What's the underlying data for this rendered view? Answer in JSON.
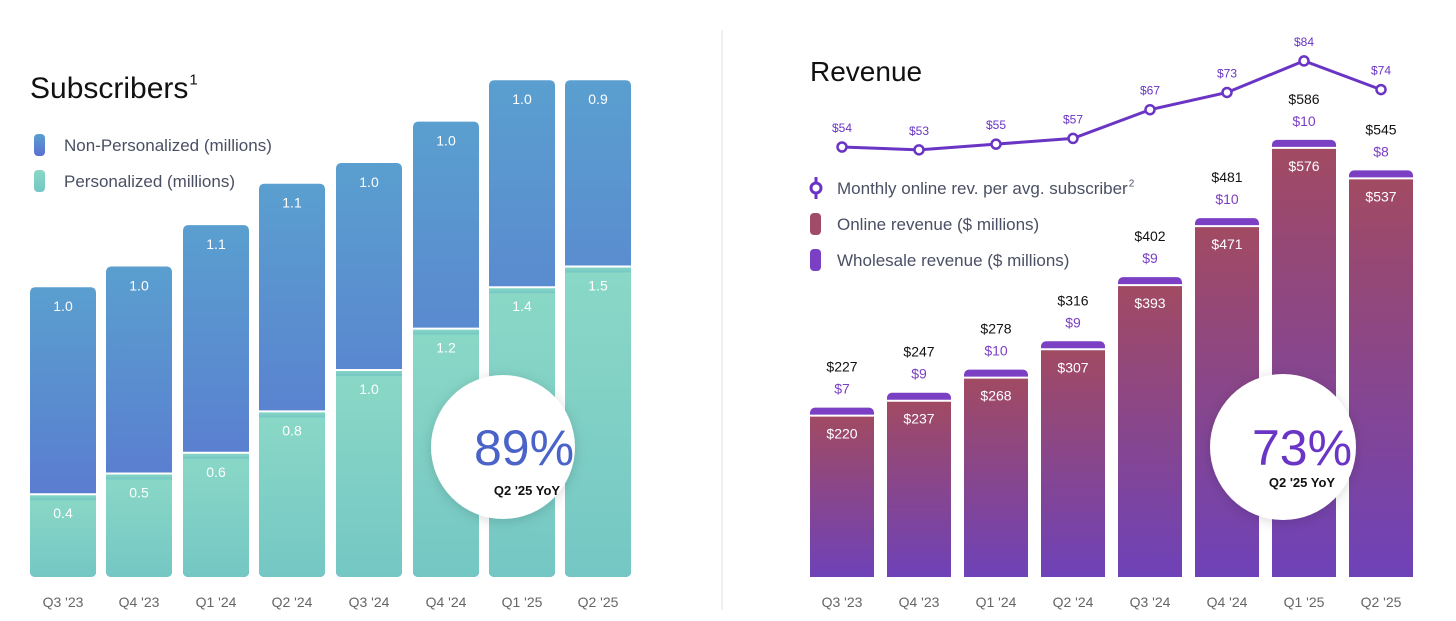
{
  "chart_data": [
    {
      "type": "bar",
      "stacked": true,
      "title": "Subscribers",
      "title_sup": "1",
      "categories": [
        "Q3 '23",
        "Q4 '23",
        "Q1 '24",
        "Q2 '24",
        "Q3 '24",
        "Q4 '24",
        "Q1 '25",
        "Q2 '25"
      ],
      "series": [
        {
          "name": "Personalized (millions)",
          "color": "#79cfc0",
          "values": [
            0.4,
            0.5,
            0.6,
            0.8,
            1.0,
            1.2,
            1.4,
            1.5
          ]
        },
        {
          "name": "Non-Personalized (millions)",
          "color": "#5b7fd0",
          "values": [
            1.0,
            1.0,
            1.1,
            1.1,
            1.0,
            1.0,
            1.0,
            0.9
          ]
        }
      ],
      "callout": {
        "value": "89%",
        "label": "Q2 '25 YoY",
        "color": "#4a63c8"
      }
    },
    {
      "type": "bar",
      "stacked": true,
      "title": "Revenue",
      "categories": [
        "Q3 '23",
        "Q4 '23",
        "Q1 '24",
        "Q2 '24",
        "Q3 '24",
        "Q4 '24",
        "Q1 '25",
        "Q2 '25"
      ],
      "series": [
        {
          "name": "Online revenue ($ millions)",
          "color": "#a04b6a",
          "values": [
            220,
            237,
            268,
            307,
            393,
            471,
            576,
            537
          ]
        },
        {
          "name": "Wholesale revenue ($ millions)",
          "color": "#7b3fc4",
          "values": [
            7,
            9,
            10,
            9,
            9,
            10,
            10,
            8
          ]
        }
      ],
      "totals": [
        227,
        247,
        278,
        316,
        402,
        481,
        586,
        545
      ],
      "line": {
        "name": "Monthly online rev. per avg. subscriber",
        "sup": "2",
        "color": "#6a35c4",
        "values": [
          54,
          53,
          55,
          57,
          67,
          73,
          84,
          74
        ]
      },
      "callout": {
        "value": "73%",
        "label": "Q2 '25 YoY",
        "color": "#6a35c4"
      }
    }
  ]
}
